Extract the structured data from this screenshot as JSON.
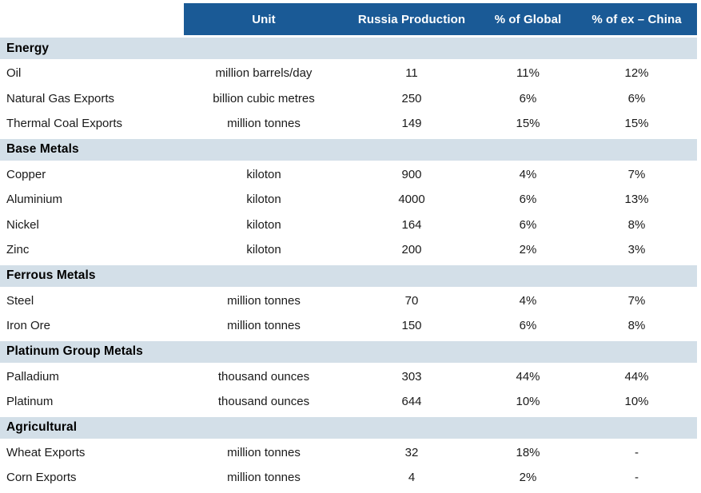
{
  "colors": {
    "header_bg": "#1A5A96",
    "header_text": "#FFFFFF",
    "section_band_bg": "#D3DFE8",
    "section_text": "#000000",
    "body_text": "#1A1A1A"
  },
  "chart_data": {
    "type": "table",
    "columns": [
      "",
      "Unit",
      "Russia Production",
      "% of Global",
      "% of ex – China"
    ],
    "sections": [
      {
        "title": "Energy",
        "rows": [
          {
            "label": "Oil",
            "values": [
              "million barrels/day",
              "11",
              "11%",
              "12%"
            ]
          },
          {
            "label": "Natural Gas Exports",
            "values": [
              "billion cubic metres",
              "250",
              "6%",
              "6%"
            ]
          },
          {
            "label": "Thermal Coal Exports",
            "values": [
              "million tonnes",
              "149",
              "15%",
              "15%"
            ]
          }
        ]
      },
      {
        "title": "Base Metals",
        "rows": [
          {
            "label": "Copper",
            "values": [
              "kiloton",
              "900",
              "4%",
              "7%"
            ]
          },
          {
            "label": "Aluminium",
            "values": [
              "kiloton",
              "4000",
              "6%",
              "13%"
            ]
          },
          {
            "label": "Nickel",
            "values": [
              "kiloton",
              "164",
              "6%",
              "8%"
            ]
          },
          {
            "label": "Zinc",
            "values": [
              "kiloton",
              "200",
              "2%",
              "3%"
            ]
          }
        ]
      },
      {
        "title": "Ferrous Metals",
        "rows": [
          {
            "label": "Steel",
            "values": [
              "million tonnes",
              "70",
              "4%",
              "7%"
            ]
          },
          {
            "label": "Iron Ore",
            "values": [
              "million tonnes",
              "150",
              "6%",
              "8%"
            ]
          }
        ]
      },
      {
        "title": "Platinum Group Metals",
        "rows": [
          {
            "label": "Palladium",
            "values": [
              "thousand ounces",
              "303",
              "44%",
              "44%"
            ]
          },
          {
            "label": "Platinum",
            "values": [
              "thousand ounces",
              "644",
              "10%",
              "10%"
            ]
          }
        ]
      },
      {
        "title": "Agricultural",
        "rows": [
          {
            "label": "Wheat Exports",
            "values": [
              "million tonnes",
              "32",
              "18%",
              "-"
            ]
          },
          {
            "label": "Corn Exports",
            "values": [
              "million tonnes",
              "4",
              "2%",
              "-"
            ]
          }
        ]
      }
    ]
  }
}
